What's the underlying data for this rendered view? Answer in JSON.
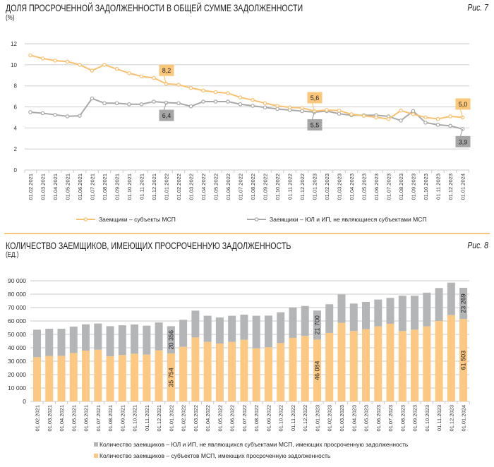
{
  "colors": {
    "msp": "#f9c070",
    "non_msp": "#a8a8a8",
    "bar_msp": "#fdc882",
    "bar_non_msp": "#b4b5b7",
    "separator": "#f9c57c"
  },
  "chart_data": [
    {
      "type": "line",
      "title": "ДОЛЯ ПРОСРОЧЕННОЙ ЗАДОЛЖЕННОСТИ В ОБЩЕЙ СУММЕ ЗАДОЛЖЕННОСТИ",
      "figure": "Рис. 7",
      "unit": "(%)",
      "ylim": [
        0,
        12
      ],
      "yticks": [
        "0",
        "2",
        "4",
        "6",
        "8",
        "10",
        "12"
      ],
      "grid": true,
      "legend_position": "bottom",
      "categories": [
        "01.02.2021",
        "01.03.2021",
        "01.04.2021",
        "01.05.2021",
        "01.06.2021",
        "01.07.2021",
        "01.08.2021",
        "01.09.2021",
        "01.10.2021",
        "01.11.2021",
        "01.12.2021",
        "01.01.2022",
        "01.02.2022",
        "01.03.2022",
        "01.04.2022",
        "01.05.2022",
        "01.06.2022",
        "01.07.2022",
        "01.08.2022",
        "01.09.2022",
        "01.10.2022",
        "01.11.2022",
        "01.12.2022",
        "01.01.2023",
        "01.02.2023",
        "01.03.2023",
        "01.04.2023",
        "01.05.2023",
        "01.06.2023",
        "01.07.2023",
        "01.08.2023",
        "01.09.2023",
        "01.10.2023",
        "01.11.2023",
        "01.12.2023",
        "01.01.2024"
      ],
      "series": [
        {
          "name": "Заемщики – субъекты МСП",
          "color": "#f9c070",
          "values": [
            10.9,
            10.6,
            10.4,
            10.3,
            10.0,
            9.45,
            10.0,
            9.6,
            9.2,
            8.9,
            8.75,
            8.2,
            8.1,
            7.8,
            7.55,
            7.4,
            7.3,
            6.9,
            6.65,
            6.35,
            6.1,
            5.95,
            5.9,
            5.6,
            5.7,
            5.65,
            5.3,
            5.15,
            5.0,
            4.85,
            5.65,
            5.3,
            5.0,
            4.85,
            5.1,
            5.0
          ]
        },
        {
          "name": "Заемщики – ЮЛ и ИП, не являющиеся субъектами МСП",
          "color": "#a8a8a8",
          "values": [
            5.5,
            5.4,
            5.25,
            5.1,
            5.15,
            6.8,
            6.35,
            6.35,
            6.25,
            6.25,
            6.5,
            6.4,
            6.35,
            6.05,
            6.5,
            6.5,
            6.5,
            6.25,
            6.1,
            5.95,
            5.8,
            5.7,
            5.6,
            5.5,
            5.6,
            5.35,
            5.2,
            5.2,
            5.2,
            5.1,
            4.7,
            5.6,
            4.5,
            4.3,
            4.2,
            3.9
          ]
        }
      ],
      "data_labels": [
        {
          "series": 0,
          "index": 11,
          "text": "8,2"
        },
        {
          "series": 1,
          "index": 11,
          "text": "6,4"
        },
        {
          "series": 0,
          "index": 23,
          "text": "5,6"
        },
        {
          "series": 1,
          "index": 23,
          "text": "5,5"
        },
        {
          "series": 0,
          "index": 35,
          "text": "5,0"
        },
        {
          "series": 1,
          "index": 35,
          "text": "3,9"
        }
      ]
    },
    {
      "type": "bar",
      "stacked": true,
      "title": "КОЛИЧЕСТВО ЗАЕМЩИКОВ, ИМЕЮЩИХ ПРОСРОЧЕННУЮ ЗАДОЛЖЕННОСТЬ",
      "figure": "Рис. 8",
      "unit": "(ЕД.)",
      "ylim": [
        0,
        90000
      ],
      "yticks": [
        "0",
        "10 000",
        "20 000",
        "30 000",
        "40 000",
        "50 000",
        "60 000",
        "70 000",
        "80 000",
        "90 000"
      ],
      "grid": true,
      "legend_position": "bottom",
      "categories": [
        "01.02.2021",
        "01.03.2021",
        "01.04.2021",
        "01.05.2021",
        "01.06.2021",
        "01.07.2021",
        "01.08.2021",
        "01.09.2021",
        "01.10.2021",
        "01.11.2021",
        "01.12.2021",
        "01.01.2022",
        "01.02.2022",
        "01.03.2022",
        "01.04.2022",
        "01.05.2022",
        "01.06.2022",
        "01.07.2022",
        "01.08.2022",
        "01.09.2022",
        "01.10.2022",
        "01.11.2022",
        "01.12.2022",
        "01.01.2023",
        "01.02.2023",
        "01.03.2023",
        "01.04.2023",
        "01.05.2023",
        "01.06.2023",
        "01.07.2023",
        "01.08.2023",
        "01.09.2023",
        "01.10.2023",
        "01.11.2023",
        "01.12.2023",
        "01.01.2024"
      ],
      "series": [
        {
          "name": "Количество заемщиков – субъектов МСП, имеющих просроченную задолженность",
          "color": "#fdc882",
          "values": [
            33000,
            33900,
            34000,
            36100,
            37900,
            38600,
            33700,
            34600,
            35600,
            34900,
            38100,
            35754,
            40700,
            47700,
            44400,
            43200,
            44400,
            46000,
            39600,
            40400,
            43500,
            47400,
            48800,
            46084,
            51100,
            58600,
            52500,
            53900,
            56000,
            57900,
            52500,
            53500,
            56000,
            60000,
            64400,
            61503
          ]
        },
        {
          "name": "Количество заемщиков – ЮЛ и ИП, не являющихся субъектами МСП, имеющих просроченную задолженность",
          "color": "#b4b5b7",
          "values": [
            20500,
            20300,
            20200,
            19700,
            19600,
            19500,
            22400,
            22200,
            21800,
            21600,
            20800,
            20356,
            20200,
            20000,
            19500,
            19400,
            19500,
            18700,
            24300,
            23600,
            23000,
            22600,
            22400,
            21700,
            21400,
            21200,
            20500,
            20300,
            20000,
            19300,
            26400,
            25400,
            25100,
            24600,
            24200,
            23269
          ]
        }
      ],
      "data_labels": [
        {
          "series": 0,
          "index": 11,
          "text": "35 754"
        },
        {
          "series": 1,
          "index": 11,
          "text": "20 356"
        },
        {
          "series": 0,
          "index": 23,
          "text": "46 084"
        },
        {
          "series": 1,
          "index": 23,
          "text": "21 700"
        },
        {
          "series": 0,
          "index": 35,
          "text": "61 503"
        },
        {
          "series": 1,
          "index": 35,
          "text": "23 269"
        }
      ]
    }
  ]
}
